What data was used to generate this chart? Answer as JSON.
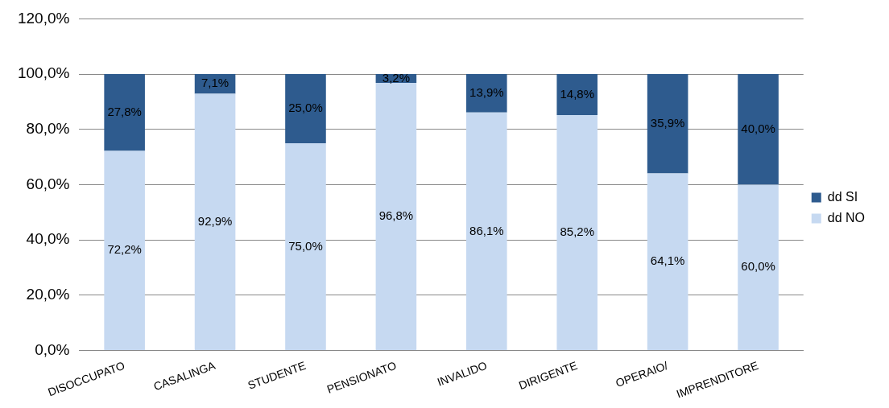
{
  "chart_data": {
    "type": "bar",
    "stacked": true,
    "categories": [
      "DISOCCUPATO",
      "CASALINGA",
      "STUDENTE",
      "PENSIONATO",
      "INVALIDO",
      "DIRIGENTE",
      "OPERAIO/",
      "IMPRENDITORE"
    ],
    "series": [
      {
        "name": "dd NO",
        "color": "#c6d9f1",
        "values": [
          72.2,
          92.9,
          75.0,
          96.8,
          86.1,
          85.2,
          64.1,
          60.0
        ],
        "value_labels": [
          "72,2%",
          "92,9%",
          "75,0%",
          "96,8%",
          "86,1%",
          "85,2%",
          "64,1%",
          "60,0%"
        ]
      },
      {
        "name": "dd SI",
        "color": "#2e5b8e",
        "values": [
          27.8,
          7.1,
          25.0,
          3.2,
          13.9,
          14.8,
          35.9,
          40.0
        ],
        "value_labels": [
          "27,8%",
          "7,1%",
          "25,0%",
          "3,2%",
          "13,9%",
          "14,8%",
          "35,9%",
          "40,0%"
        ]
      }
    ],
    "ylim": [
      0,
      120
    ],
    "yticks": [
      {
        "value": 0,
        "label": "0,0%"
      },
      {
        "value": 20,
        "label": "20,0%"
      },
      {
        "value": 40,
        "label": "40,0%"
      },
      {
        "value": 60,
        "label": "60,0%"
      },
      {
        "value": 80,
        "label": "80,0%"
      },
      {
        "value": 100,
        "label": "100,0%"
      },
      {
        "value": 120,
        "label": "120,0%"
      }
    ],
    "grid": "y",
    "legend": "right"
  }
}
